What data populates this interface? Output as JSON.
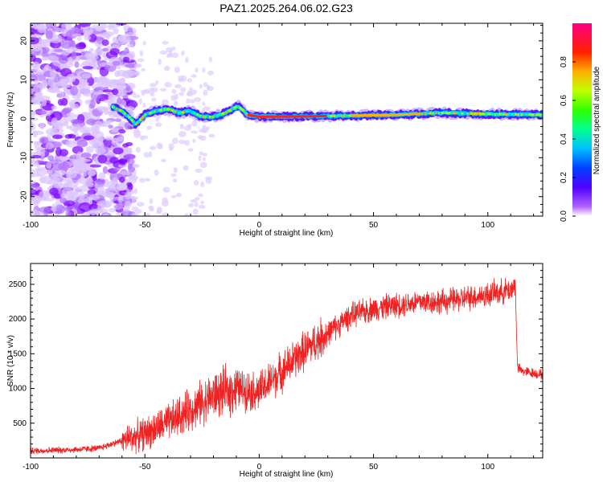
{
  "title": "PAZ1.2025.264.06.02.G23",
  "colors": {
    "snr_line": "#ee2222",
    "background": "#ffffff",
    "axis": "#000000"
  },
  "chart_data": [
    {
      "type": "heatmap",
      "name": "spectrogram",
      "xlabel": "Height of straight line (km)",
      "ylabel": "Frequency (Hz)",
      "xlim": [
        -100,
        124
      ],
      "ylim": [
        -25,
        24.5
      ],
      "xticks": [
        -100,
        -50,
        0,
        50,
        100
      ],
      "yticks": [
        -20,
        -10,
        0,
        10,
        20
      ],
      "colorbar": {
        "label": "Normalized spectral amplitude",
        "range": [
          0,
          1
        ],
        "ticks": [
          "0.0",
          "0.2",
          "0.4",
          "0.6",
          "0.8"
        ],
        "tick_values": [
          0.0,
          0.2,
          0.4,
          0.6,
          0.8
        ],
        "colormap": "hsv-reversed (magenta high, violet low)"
      },
      "ridge": {
        "x": [
          -64,
          -60,
          -57,
          -54,
          -50,
          -45,
          -40,
          -35,
          -30,
          -25,
          -20,
          -15,
          -10,
          -9,
          -5,
          0,
          20,
          40,
          60,
          80,
          100,
          124
        ],
        "y": [
          3.0,
          2.0,
          0.5,
          -1.5,
          1.0,
          2.0,
          2.5,
          1.5,
          2.0,
          0.5,
          0.5,
          1.5,
          3.0,
          3.2,
          1.0,
          0.5,
          0.6,
          0.8,
          1.0,
          1.5,
          1.2,
          1.0
        ]
      }
    },
    {
      "type": "line",
      "name": "snr",
      "xlabel": "Height of straight line (km)",
      "ylabel": "SNR (10 * v/v)",
      "xlim": [
        -100,
        124
      ],
      "ylim": [
        0,
        2800
      ],
      "xticks": [
        -100,
        -50,
        0,
        50,
        100
      ],
      "yticks": [
        500,
        1000,
        1500,
        2000,
        2500
      ],
      "trend": {
        "x": [
          -100,
          -80,
          -70,
          -60,
          -50,
          -40,
          -30,
          -20,
          -10,
          0,
          10,
          20,
          30,
          40,
          50,
          60,
          70,
          80,
          90,
          100,
          110,
          112,
          113,
          115,
          124
        ],
        "y": [
          100,
          120,
          140,
          250,
          350,
          500,
          700,
          900,
          1000,
          950,
          1250,
          1550,
          1800,
          2050,
          2150,
          2200,
          2250,
          2250,
          2300,
          2350,
          2420,
          2500,
          1300,
          1250,
          1200
        ]
      }
    }
  ]
}
